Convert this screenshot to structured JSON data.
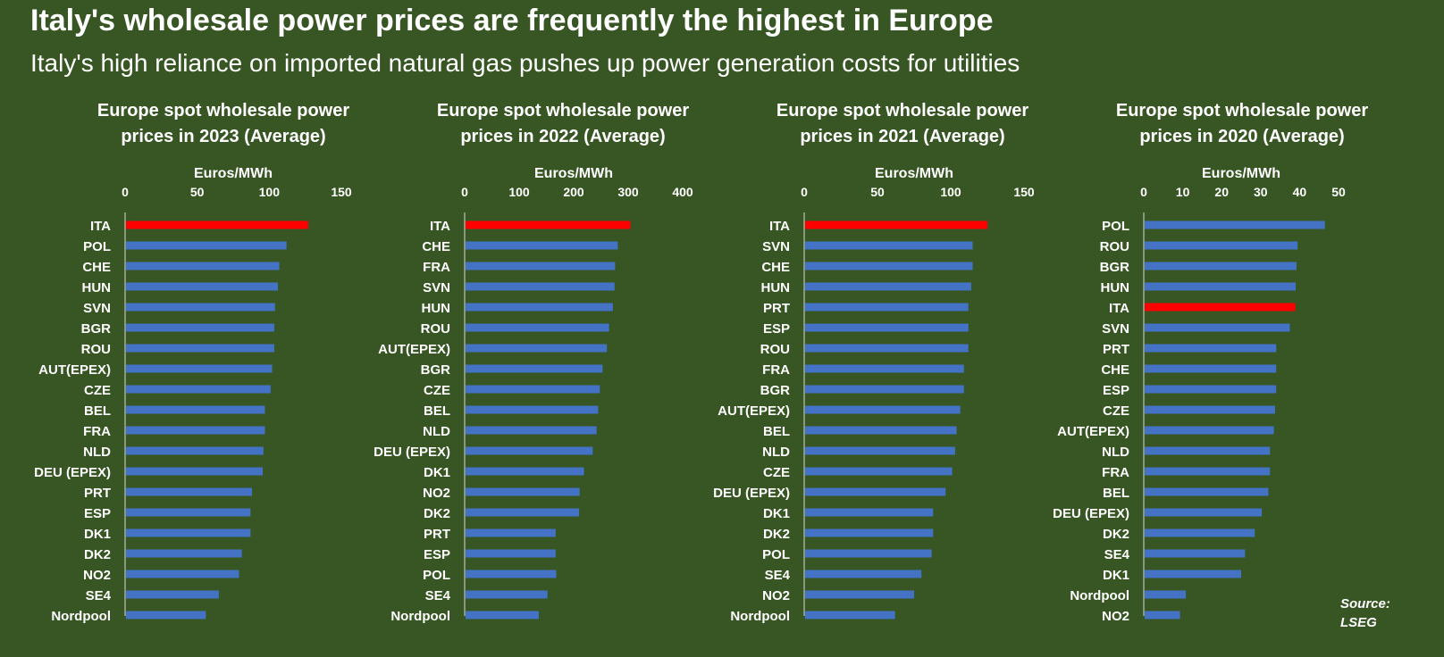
{
  "title": "Italy's wholesale power prices are frequently the highest in Europe",
  "subtitle": "Italy's high reliance on imported natural gas pushes up power generation costs for utilities",
  "source_line1": "Source:",
  "source_line2": "LSEG",
  "colors": {
    "background": "#375623",
    "bar": "#4472C4",
    "highlight": "#FF0000",
    "text": "#FFFFFF"
  },
  "chart_data": [
    {
      "type": "bar",
      "title_line1": "Europe spot wholesale power",
      "title_line2": "prices in 2023 (Average)",
      "unit": "Euros/MWh",
      "xlim": [
        0,
        150
      ],
      "ticks": [
        0,
        50,
        100,
        150
      ],
      "highlight": "ITA",
      "categories": [
        "ITA",
        "POL",
        "CHE",
        "HUN",
        "SVN",
        "BGR",
        "ROU",
        "AUT(EPEX)",
        "CZE",
        "BEL",
        "FRA",
        "NLD",
        "DEU (EPEX)",
        "PRT",
        "ESP",
        "DK1",
        "DK2",
        "NO2",
        "SE4",
        "Nordpool"
      ],
      "values": [
        127,
        112,
        107,
        106,
        104,
        103.5,
        103.5,
        102,
        101,
        97,
        97,
        96,
        95.5,
        88,
        87,
        87,
        81,
        79,
        65,
        56
      ]
    },
    {
      "type": "bar",
      "title_line1": "Europe spot wholesale power",
      "title_line2": "prices in 2022 (Average)",
      "unit": "Euros/MWh",
      "xlim": [
        0,
        400
      ],
      "ticks": [
        0,
        100,
        200,
        300,
        400
      ],
      "highlight": "ITA",
      "categories": [
        "ITA",
        "CHE",
        "FRA",
        "SVN",
        "HUN",
        "ROU",
        "AUT(EPEX)",
        "BGR",
        "CZE",
        "BEL",
        "NLD",
        "DEU (EPEX)",
        "DK1",
        "NO2",
        "DK2",
        "PRT",
        "ESP",
        "POL",
        "SE4",
        "Nordpool"
      ],
      "values": [
        304,
        281,
        276,
        275,
        272,
        265,
        261,
        253,
        248,
        245,
        242,
        235,
        219,
        211,
        210,
        167,
        167,
        168,
        152,
        136
      ]
    },
    {
      "type": "bar",
      "title_line1": "Europe spot wholesale power",
      "title_line2": "prices in 2021 (Average)",
      "unit": "Euros/MWh",
      "xlim": [
        0,
        150
      ],
      "ticks": [
        0,
        50,
        100,
        150
      ],
      "highlight": "ITA",
      "categories": [
        "ITA",
        "SVN",
        "CHE",
        "HUN",
        "PRT",
        "ESP",
        "ROU",
        "FRA",
        "BGR",
        "AUT(EPEX)",
        "BEL",
        "NLD",
        "CZE",
        "DEU (EPEX)",
        "DK1",
        "DK2",
        "POL",
        "SE4",
        "NO2",
        "Nordpool"
      ],
      "values": [
        125,
        115,
        115,
        114,
        112,
        112,
        112,
        109,
        109,
        106.5,
        104,
        103,
        101,
        96.5,
        88,
        88,
        87,
        80,
        75,
        62
      ]
    },
    {
      "type": "bar",
      "title_line1": "Europe spot wholesale power",
      "title_line2": "prices in 2020 (Average)",
      "unit": "Euros/MWh",
      "xlim": [
        0,
        50
      ],
      "ticks": [
        0,
        10,
        20,
        30,
        40,
        50
      ],
      "highlight": "ITA",
      "categories": [
        "POL",
        "ROU",
        "BGR",
        "HUN",
        "ITA",
        "SVN",
        "PRT",
        "CHE",
        "ESP",
        "CZE",
        "AUT(EPEX)",
        "NLD",
        "FRA",
        "BEL",
        "DEU (EPEX)",
        "DK2",
        "SE4",
        "DK1",
        "Nordpool",
        "NO2"
      ],
      "values": [
        46.5,
        39.5,
        39.2,
        39.0,
        38.9,
        37.5,
        34.0,
        34.0,
        34.0,
        33.7,
        33.4,
        32.4,
        32.4,
        32.0,
        30.3,
        28.5,
        26.0,
        25.0,
        10.8,
        9.3
      ]
    }
  ]
}
